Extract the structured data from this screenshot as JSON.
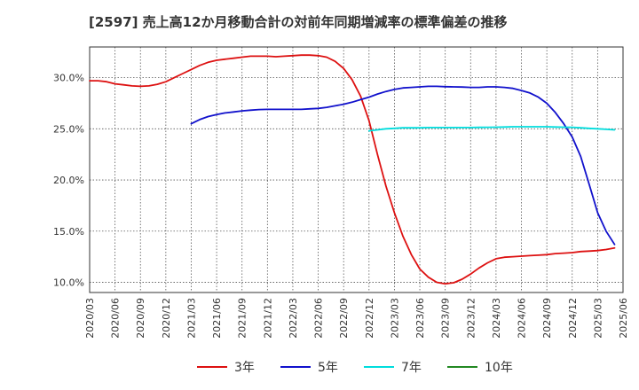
{
  "chart_data": {
    "type": "line",
    "title": "[2597]  売上高12か月移動合計の対前年同期増減率の標準偏差の推移",
    "xlabel": "",
    "ylabel": "",
    "x_range": [
      2020.1667,
      2025.4167
    ],
    "ylim": [
      9.0,
      33.0
    ],
    "y_ticks": [
      10,
      15,
      20,
      25,
      30
    ],
    "y_tick_labels": [
      "10.0%",
      "15.0%",
      "20.0%",
      "25.0%",
      "30.0%"
    ],
    "x_ticks": [
      2020.1667,
      2020.4167,
      2020.6667,
      2020.9167,
      2021.1667,
      2021.4167,
      2021.6667,
      2021.9167,
      2022.1667,
      2022.4167,
      2022.6667,
      2022.9167,
      2023.1667,
      2023.4167,
      2023.6667,
      2023.9167,
      2024.1667,
      2024.4167,
      2024.6667,
      2024.9167,
      2025.1667,
      2025.4167
    ],
    "x_tick_labels": [
      "2020/03",
      "2020/06",
      "2020/09",
      "2020/12",
      "2021/03",
      "2021/06",
      "2021/09",
      "2021/12",
      "2022/03",
      "2022/06",
      "2022/09",
      "2022/12",
      "2023/03",
      "2023/06",
      "2023/09",
      "2023/12",
      "2024/03",
      "2024/06",
      "2024/09",
      "2024/12",
      "2025/03",
      "2025/06"
    ],
    "grid": true,
    "legend_position": "bottom",
    "series": [
      {
        "name": "3年",
        "color": "#dd1111",
        "points": [
          [
            2020.1667,
            29.7
          ],
          [
            2020.25,
            29.7
          ],
          [
            2020.3333,
            29.6
          ],
          [
            2020.4167,
            29.4
          ],
          [
            2020.5,
            29.3
          ],
          [
            2020.5833,
            29.2
          ],
          [
            2020.6667,
            29.15
          ],
          [
            2020.75,
            29.2
          ],
          [
            2020.8333,
            29.35
          ],
          [
            2020.9167,
            29.6
          ],
          [
            2021.0,
            30.0
          ],
          [
            2021.0833,
            30.4
          ],
          [
            2021.1667,
            30.8
          ],
          [
            2021.25,
            31.2
          ],
          [
            2021.3333,
            31.5
          ],
          [
            2021.4167,
            31.7
          ],
          [
            2021.5,
            31.8
          ],
          [
            2021.5833,
            31.9
          ],
          [
            2021.6667,
            32.0
          ],
          [
            2021.75,
            32.1
          ],
          [
            2021.8333,
            32.1
          ],
          [
            2021.9167,
            32.1
          ],
          [
            2022.0,
            32.05
          ],
          [
            2022.0833,
            32.1
          ],
          [
            2022.1667,
            32.15
          ],
          [
            2022.25,
            32.2
          ],
          [
            2022.3333,
            32.2
          ],
          [
            2022.4167,
            32.15
          ],
          [
            2022.5,
            32.0
          ],
          [
            2022.5833,
            31.6
          ],
          [
            2022.6667,
            30.9
          ],
          [
            2022.75,
            29.8
          ],
          [
            2022.8333,
            28.2
          ],
          [
            2022.9167,
            25.8
          ],
          [
            2023.0,
            22.5
          ],
          [
            2023.0833,
            19.4
          ],
          [
            2023.1667,
            16.8
          ],
          [
            2023.25,
            14.5
          ],
          [
            2023.3333,
            12.7
          ],
          [
            2023.4167,
            11.3
          ],
          [
            2023.5,
            10.5
          ],
          [
            2023.5833,
            10.0
          ],
          [
            2023.6667,
            9.85
          ],
          [
            2023.75,
            9.95
          ],
          [
            2023.8333,
            10.3
          ],
          [
            2023.9167,
            10.8
          ],
          [
            2024.0,
            11.4
          ],
          [
            2024.0833,
            11.9
          ],
          [
            2024.1667,
            12.3
          ],
          [
            2024.25,
            12.45
          ],
          [
            2024.3333,
            12.5
          ],
          [
            2024.4167,
            12.55
          ],
          [
            2024.5,
            12.6
          ],
          [
            2024.5833,
            12.65
          ],
          [
            2024.6667,
            12.7
          ],
          [
            2024.75,
            12.8
          ],
          [
            2024.8333,
            12.85
          ],
          [
            2024.9167,
            12.9
          ],
          [
            2025.0,
            13.0
          ],
          [
            2025.0833,
            13.05
          ],
          [
            2025.1667,
            13.1
          ],
          [
            2025.25,
            13.2
          ],
          [
            2025.3333,
            13.35
          ]
        ]
      },
      {
        "name": "5年",
        "color": "#1111cc",
        "points": [
          [
            2021.1667,
            25.5
          ],
          [
            2021.25,
            25.9
          ],
          [
            2021.3333,
            26.2
          ],
          [
            2021.4167,
            26.4
          ],
          [
            2021.5,
            26.55
          ],
          [
            2021.5833,
            26.65
          ],
          [
            2021.6667,
            26.75
          ],
          [
            2021.75,
            26.82
          ],
          [
            2021.8333,
            26.88
          ],
          [
            2021.9167,
            26.9
          ],
          [
            2022.0,
            26.9
          ],
          [
            2022.0833,
            26.9
          ],
          [
            2022.1667,
            26.9
          ],
          [
            2022.25,
            26.9
          ],
          [
            2022.3333,
            26.95
          ],
          [
            2022.4167,
            27.0
          ],
          [
            2022.5,
            27.1
          ],
          [
            2022.5833,
            27.25
          ],
          [
            2022.6667,
            27.4
          ],
          [
            2022.75,
            27.6
          ],
          [
            2022.8333,
            27.85
          ],
          [
            2022.9167,
            28.1
          ],
          [
            2023.0,
            28.4
          ],
          [
            2023.0833,
            28.65
          ],
          [
            2023.1667,
            28.85
          ],
          [
            2023.25,
            29.0
          ],
          [
            2023.3333,
            29.05
          ],
          [
            2023.4167,
            29.1
          ],
          [
            2023.5,
            29.15
          ],
          [
            2023.5833,
            29.15
          ],
          [
            2023.6667,
            29.12
          ],
          [
            2023.75,
            29.1
          ],
          [
            2023.8333,
            29.08
          ],
          [
            2023.9167,
            29.05
          ],
          [
            2024.0,
            29.05
          ],
          [
            2024.0833,
            29.1
          ],
          [
            2024.1667,
            29.1
          ],
          [
            2024.25,
            29.05
          ],
          [
            2024.3333,
            28.95
          ],
          [
            2024.4167,
            28.75
          ],
          [
            2024.5,
            28.5
          ],
          [
            2024.5833,
            28.1
          ],
          [
            2024.6667,
            27.5
          ],
          [
            2024.75,
            26.6
          ],
          [
            2024.8333,
            25.5
          ],
          [
            2024.9167,
            24.2
          ],
          [
            2025.0,
            22.3
          ],
          [
            2025.0833,
            19.6
          ],
          [
            2025.1667,
            16.8
          ],
          [
            2025.25,
            15.0
          ],
          [
            2025.3333,
            13.7
          ]
        ]
      },
      {
        "name": "7年",
        "color": "#00dddd",
        "points": [
          [
            2022.9167,
            24.8
          ],
          [
            2023.0,
            24.9
          ],
          [
            2023.0833,
            25.0
          ],
          [
            2023.1667,
            25.05
          ],
          [
            2023.25,
            25.1
          ],
          [
            2023.3333,
            25.1
          ],
          [
            2023.4167,
            25.1
          ],
          [
            2023.5,
            25.12
          ],
          [
            2023.5833,
            25.12
          ],
          [
            2023.6667,
            25.12
          ],
          [
            2023.75,
            25.12
          ],
          [
            2023.8333,
            25.12
          ],
          [
            2023.9167,
            25.12
          ],
          [
            2024.0,
            25.14
          ],
          [
            2024.0833,
            25.15
          ],
          [
            2024.1667,
            25.16
          ],
          [
            2024.25,
            25.18
          ],
          [
            2024.3333,
            25.2
          ],
          [
            2024.4167,
            25.2
          ],
          [
            2024.5,
            25.2
          ],
          [
            2024.5833,
            25.2
          ],
          [
            2024.6667,
            25.2
          ],
          [
            2024.75,
            25.18
          ],
          [
            2024.8333,
            25.16
          ],
          [
            2024.9167,
            25.15
          ],
          [
            2025.0,
            25.1
          ],
          [
            2025.0833,
            25.05
          ],
          [
            2025.1667,
            25.0
          ],
          [
            2025.25,
            24.95
          ],
          [
            2025.3333,
            24.9
          ]
        ]
      },
      {
        "name": "10年",
        "color": "#228822",
        "points": []
      }
    ]
  }
}
